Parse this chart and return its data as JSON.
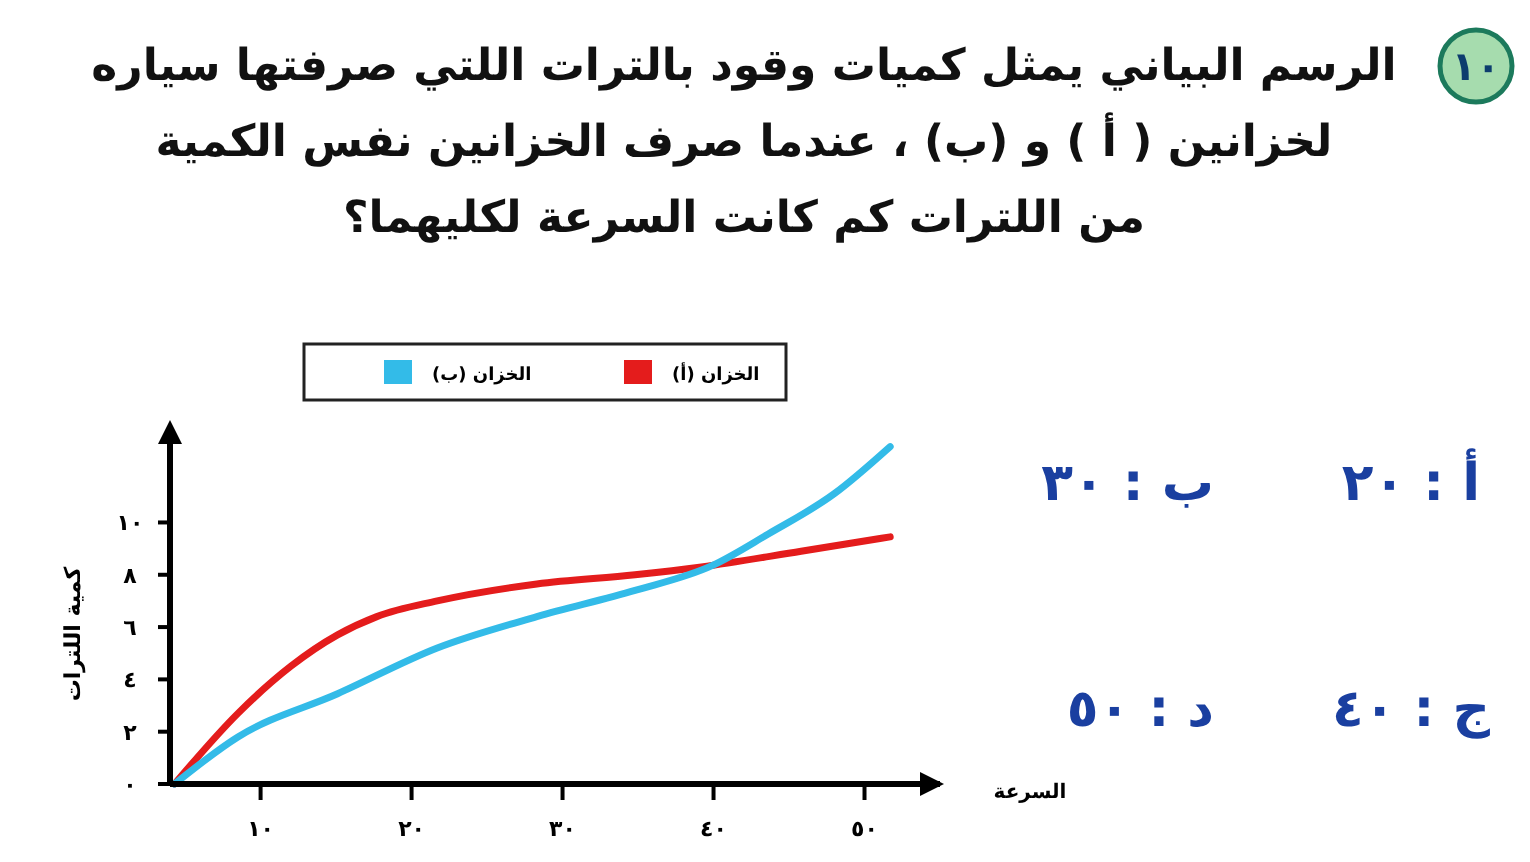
{
  "chart_data": {
    "type": "line",
    "title": "الرسم البياني يمثل كميات وقود بالترات اللتي صرفتها سياره\nلخزانين ( أ ) و (ب) ، عندما صرف الخزانين نفس الكمية\nمن اللترات كم كانت السرعة لكليهما؟",
    "xlabel": "السرعة",
    "ylabel": "كمية اللترات",
    "annotations": [
      "١٠",
      "أ : ٢٠",
      "ب : ٣٠",
      "ج : ٤٠",
      "د : ٥٠"
    ],
    "series": [
      {
        "name": "الخزان (أ)",
        "color": "#e41c1c",
        "x": [
          4.3,
          8.5,
          12.0,
          15.1,
          17.7,
          21.7,
          28.3,
          34.8,
          39.2,
          45.8,
          51.7
        ],
        "values": [
          0,
          2.7,
          4.5,
          5.7,
          6.4,
          7.0,
          7.65,
          8.0,
          8.3,
          8.9,
          9.45
        ]
      },
      {
        "name": "الخزان (ب)",
        "color": "#33bbe8",
        "x": [
          4.3,
          8.5,
          15.1,
          21.7,
          28.3,
          34.8,
          39.9,
          43.6,
          48.0,
          51.7
        ],
        "values": [
          0,
          1.8,
          3.45,
          5.2,
          6.4,
          7.4,
          8.35,
          9.55,
          11.1,
          12.9
        ]
      }
    ],
    "xlim": [
      4,
      55
    ],
    "ylim": [
      0,
      13
    ],
    "xticks": [
      {
        "value": 10,
        "label": "١٠"
      },
      {
        "value": 20,
        "label": "٢٠"
      },
      {
        "value": 30,
        "label": "٣٠"
      },
      {
        "value": 40,
        "label": "٤٠"
      },
      {
        "value": 50,
        "label": "٥٠"
      }
    ],
    "yticks": [
      {
        "value": 0,
        "label": "٠"
      },
      {
        "value": 2,
        "label": "٢"
      },
      {
        "value": 4,
        "label": "٤"
      },
      {
        "value": 6,
        "label": "٦"
      },
      {
        "value": 8,
        "label": "٨"
      },
      {
        "value": 10,
        "label": "١٠"
      }
    ],
    "legend": "top",
    "grid": false,
    "marker": "none",
    "line_style": "solid"
  }
}
